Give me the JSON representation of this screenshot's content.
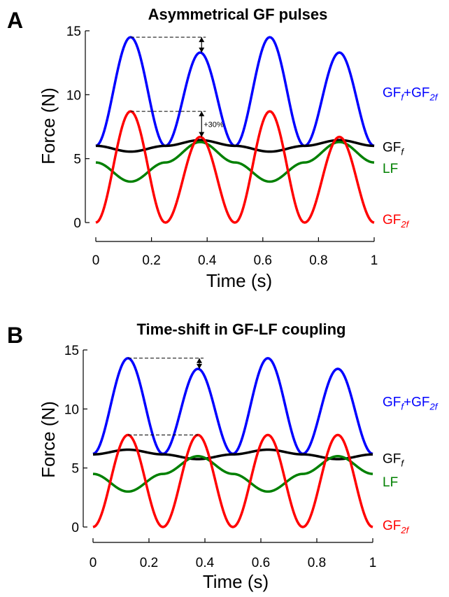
{
  "chart_data": [
    {
      "panel_label": "A",
      "type": "line",
      "title": "Asymmetrical GF pulses",
      "xlabel": "Time (s)",
      "ylabel": "Force (N)",
      "xlim": [
        0,
        1
      ],
      "ylim": [
        0,
        15
      ],
      "x_ticks": [
        "0",
        "0.2",
        "0.4",
        "0.6",
        "0.8",
        "1"
      ],
      "y_ticks": [
        "0",
        "5",
        "10",
        "15"
      ],
      "grid": false,
      "series": [
        {
          "name": "GF_f+GF_2f",
          "label_main": "GF",
          "label_sub1": "f",
          "label_mid": "+GF",
          "label_sub2": "2f",
          "color": "#0000ff",
          "x": [
            0.0,
            0.125,
            0.25,
            0.375,
            0.5,
            0.625,
            0.75,
            0.875,
            1.0
          ],
          "y": [
            6.0,
            14.5,
            6.0,
            13.3,
            6.0,
            14.5,
            6.0,
            13.3,
            6.0
          ]
        },
        {
          "name": "GF_f",
          "label_main": "GF",
          "label_sub1": "f",
          "color": "#000000",
          "x": [
            0.0,
            0.125,
            0.25,
            0.375,
            0.5,
            0.625,
            0.75,
            0.875,
            1.0
          ],
          "y": [
            6.0,
            5.55,
            6.0,
            6.45,
            6.0,
            5.55,
            6.0,
            6.45,
            6.0
          ]
        },
        {
          "name": "LF",
          "label_main": "LF",
          "color": "#008000",
          "x": [
            0.0,
            0.125,
            0.25,
            0.375,
            0.5,
            0.625,
            0.75,
            0.875,
            1.0
          ],
          "y": [
            4.7,
            3.2,
            4.7,
            6.3,
            4.7,
            3.2,
            4.7,
            6.3,
            4.7
          ]
        },
        {
          "name": "GF_2f",
          "label_main": "GF",
          "label_sub1": "2f",
          "color": "#ff0000",
          "x": [
            0.0,
            0.125,
            0.25,
            0.375,
            0.5,
            0.625,
            0.75,
            0.875,
            1.0
          ],
          "y": [
            0.0,
            8.7,
            0.0,
            6.7,
            0.0,
            8.7,
            0.0,
            6.7,
            0.0
          ]
        }
      ],
      "annotations": [
        {
          "type": "peak-difference",
          "x_from": 0.125,
          "x_to": 0.375,
          "y_top": 14.5,
          "y_bottom": 13.3,
          "text": ""
        },
        {
          "type": "peak-difference",
          "x_from": 0.125,
          "x_to": 0.375,
          "y_top": 8.7,
          "y_bottom": 6.7,
          "text": "+30%"
        }
      ]
    },
    {
      "panel_label": "B",
      "type": "line",
      "title": "Time-shift in GF-LF coupling",
      "xlabel": "Time (s)",
      "ylabel": "Force (N)",
      "xlim": [
        0,
        1
      ],
      "ylim": [
        0,
        15
      ],
      "x_ticks": [
        "0",
        "0.2",
        "0.4",
        "0.6",
        "0.8",
        "1"
      ],
      "y_ticks": [
        "0",
        "5",
        "10",
        "15"
      ],
      "grid": false,
      "series": [
        {
          "name": "GF_f+GF_2f",
          "label_main": "GF",
          "label_sub1": "f",
          "label_mid": "+GF",
          "label_sub2": "2f",
          "color": "#0000ff",
          "x": [
            0.0,
            0.125,
            0.25,
            0.375,
            0.5,
            0.625,
            0.75,
            0.875,
            1.0
          ],
          "y": [
            6.2,
            14.3,
            6.2,
            13.4,
            6.2,
            14.3,
            6.2,
            13.4,
            6.2
          ]
        },
        {
          "name": "GF_f",
          "label_main": "GF",
          "label_sub1": "f",
          "color": "#000000",
          "x": [
            0.0,
            0.125,
            0.25,
            0.375,
            0.5,
            0.625,
            0.75,
            0.875,
            1.0
          ],
          "y": [
            6.15,
            6.55,
            6.15,
            5.75,
            6.15,
            6.55,
            6.15,
            5.75,
            6.15
          ]
        },
        {
          "name": "LF",
          "label_main": "LF",
          "color": "#008000",
          "x": [
            0.0,
            0.125,
            0.25,
            0.375,
            0.5,
            0.625,
            0.75,
            0.875,
            1.0
          ],
          "y": [
            4.5,
            3.0,
            4.5,
            6.0,
            4.5,
            3.0,
            4.5,
            6.0,
            4.5
          ]
        },
        {
          "name": "GF_2f",
          "label_main": "GF",
          "label_sub1": "2f",
          "color": "#ff0000",
          "x": [
            0.0,
            0.125,
            0.25,
            0.375,
            0.5,
            0.625,
            0.75,
            0.875,
            1.0
          ],
          "y": [
            0.0,
            7.8,
            0.0,
            7.8,
            0.0,
            7.8,
            0.0,
            7.8,
            0.0
          ]
        }
      ],
      "annotations": [
        {
          "type": "peak-difference",
          "x_from": 0.125,
          "x_to": 0.375,
          "y_top": 14.3,
          "y_bottom": 13.4,
          "text": ""
        },
        {
          "type": "reference-line",
          "x_from": 0.125,
          "x_to": 0.375,
          "y": 7.8,
          "text": ""
        }
      ]
    }
  ]
}
